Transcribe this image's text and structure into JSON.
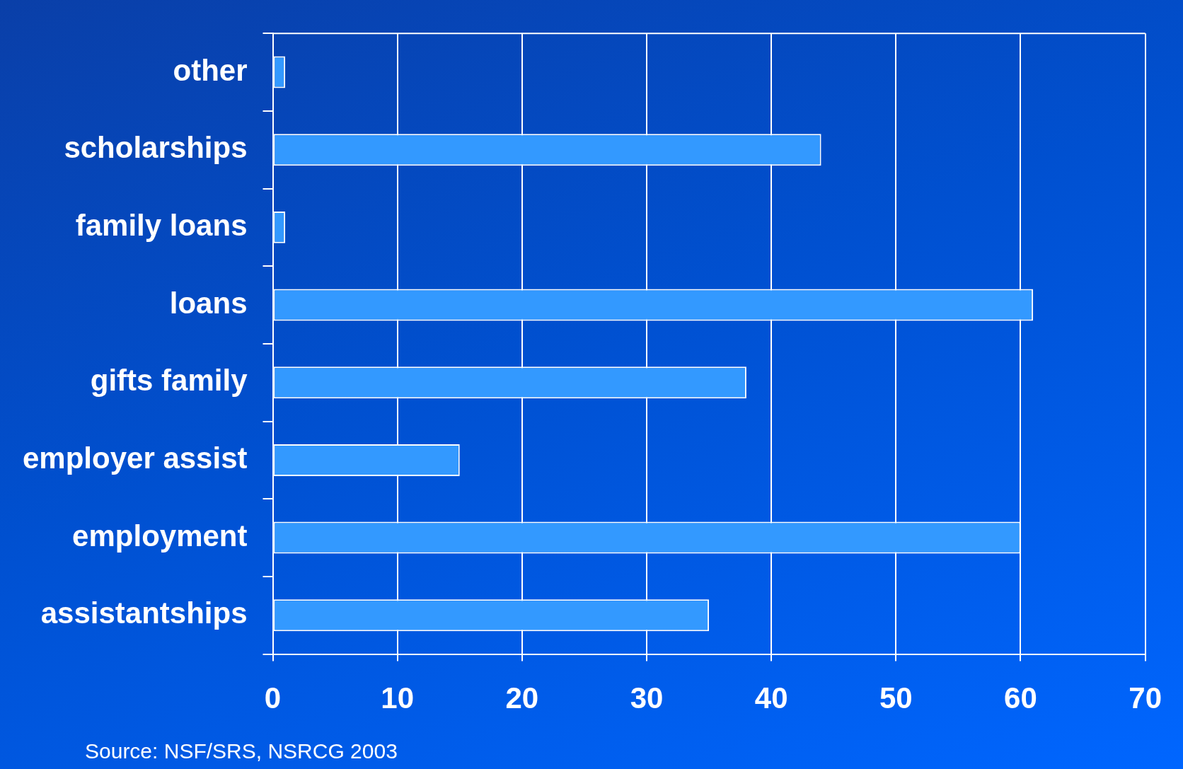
{
  "chart_data": {
    "type": "bar",
    "orientation": "horizontal",
    "categories": [
      "other",
      "scholarships",
      "family loans",
      "loans",
      "gifts family",
      "employer assist",
      "employment",
      "assistantships"
    ],
    "values": [
      1,
      44,
      1,
      61,
      38,
      15,
      60,
      35
    ],
    "color": "#3399ff",
    "xlim": [
      0,
      70
    ],
    "xticks": [
      0,
      10,
      20,
      30,
      40,
      50,
      60,
      70
    ],
    "grid": "x",
    "annotations": [
      "Source: NSF/SRS, NSRCG 2003"
    ]
  }
}
